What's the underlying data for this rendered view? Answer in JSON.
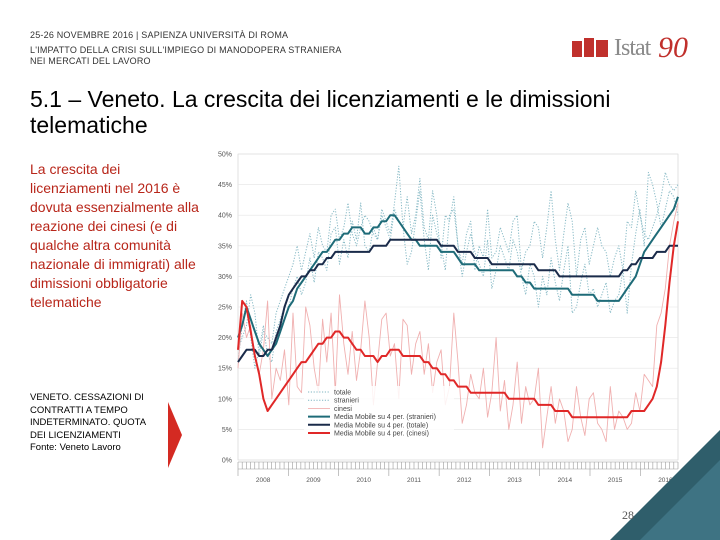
{
  "header": {
    "event": "25-26 NOVEMBRE 2016 | SAPIENZA UNIVERSITÀ DI ROMA",
    "subtitle_line1": "L'IMPATTO DELLA CRISI SULL'IMPIEGO DI MANODOPERA STRANIERA",
    "subtitle_line2": "NEI MERCATI DEL LAVORO"
  },
  "logo": {
    "text": "Istat",
    "anniversary": "90"
  },
  "slide": {
    "title": "5.1 – Veneto. La crescita dei licenziamenti e le dimissioni telematiche",
    "body": "La crescita dei licenziamenti nel 2016 è dovuta essenzialmente alla reazione dei cinesi (e di qualche altra comunità nazionale di immigrati) alle dimissioni obbligatorie telematiche",
    "caption_line1": "VENETO. CESSAZIONI DI",
    "caption_line2": "CONTRATTI A TEMPO",
    "caption_line3": "INDETERMINATO. QUOTA",
    "caption_line4": "DEI LICENZIAMENTI",
    "caption_source": "Fonte: Veneto Lavoro",
    "page_number": "28"
  },
  "colors": {
    "teal_light": "#7fb5c2",
    "teal_dark": "#1e6b78",
    "navy": "#1a2b4a",
    "red": "#e02828",
    "pink": "#f0b0b0",
    "body_red": "#b8261a",
    "arrow_red": "#d42a22"
  },
  "chart_data": {
    "type": "line",
    "x_start": 2008,
    "x_end": 2016.75,
    "ylim": [
      0,
      50
    ],
    "y_ticks": [
      "0%",
      "5%",
      "10%",
      "15%",
      "20%",
      "25%",
      "30%",
      "35%",
      "40%",
      "45%",
      "50%"
    ],
    "x_ticks": [
      "2008",
      "2009",
      "2010",
      "2011",
      "2012",
      "2013",
      "2014",
      "2015",
      "2016"
    ],
    "series": [
      {
        "name": "totale",
        "style": "dotted",
        "color": "#7fb5c2",
        "values": [
          18,
          20,
          22,
          27,
          24,
          17,
          21,
          20,
          19,
          24,
          26,
          28,
          30,
          32,
          35,
          31,
          34,
          37,
          33,
          38,
          35,
          34,
          40,
          41,
          36,
          38,
          42,
          37,
          35,
          38,
          40,
          39,
          37,
          36,
          40,
          38,
          36,
          41,
          39,
          38,
          43,
          37,
          40,
          46,
          38,
          36,
          44,
          40,
          33,
          40,
          39,
          43,
          35,
          32,
          37,
          39,
          31,
          35,
          33,
          41,
          33,
          34,
          38,
          36,
          34,
          39,
          40,
          31,
          34,
          35,
          39,
          38,
          33,
          38,
          44,
          36,
          31,
          37,
          42,
          39,
          30,
          36,
          38,
          32,
          35,
          38,
          35,
          34,
          30,
          33,
          35,
          31,
          39,
          38,
          44,
          40,
          37,
          36,
          38,
          40,
          43,
          47,
          45,
          44,
          45
        ]
      },
      {
        "name": "stranieri",
        "style": "dotted",
        "color": "#7fb5c2",
        "values": [
          16,
          22,
          26,
          20,
          15,
          18,
          22,
          17,
          16,
          21,
          23,
          25,
          25,
          28,
          30,
          27,
          29,
          33,
          29,
          34,
          33,
          31,
          37,
          38,
          32,
          36,
          33,
          39,
          36,
          42,
          35,
          34,
          38,
          36,
          41,
          39,
          37,
          42,
          48,
          38,
          32,
          34,
          39,
          44,
          36,
          31,
          40,
          37,
          35,
          31,
          40,
          41,
          35,
          30,
          34,
          37,
          34,
          32,
          30,
          36,
          28,
          31,
          35,
          33,
          31,
          36,
          34,
          30,
          27,
          32,
          30,
          25,
          30,
          27,
          33,
          29,
          26,
          31,
          35,
          24,
          25,
          29,
          32,
          27,
          28,
          25,
          27,
          29,
          24,
          26,
          27,
          31,
          24,
          32,
          37,
          41,
          35,
          47,
          45,
          42,
          38,
          41,
          44,
          43,
          40
        ]
      },
      {
        "name": "cinesi",
        "style": "thin",
        "color": "#f0b0b0",
        "values": [
          15,
          24,
          20,
          22,
          17,
          14,
          18,
          26,
          10,
          15,
          13,
          18,
          9,
          24,
          12,
          11,
          25,
          22,
          15,
          11,
          23,
          16,
          24,
          11,
          27,
          19,
          14,
          21,
          13,
          18,
          26,
          20,
          9,
          16,
          23,
          24,
          17,
          19,
          10,
          23,
          22,
          14,
          19,
          21,
          14,
          19,
          11,
          16,
          18,
          9,
          12,
          24,
          16,
          6,
          9,
          14,
          11,
          10,
          15,
          7,
          11,
          20,
          8,
          13,
          5,
          9,
          16,
          6,
          12,
          9,
          10,
          15,
          2,
          7,
          12,
          6,
          10,
          8,
          3,
          5,
          12,
          7,
          4,
          10,
          11,
          6,
          5,
          3,
          12,
          5,
          8,
          7,
          5,
          6,
          11,
          8,
          14,
          13,
          12,
          22,
          24,
          28,
          35,
          39,
          42
        ]
      },
      {
        "name": "Media Mobile su 4 per. (stranieri)",
        "style": "solid",
        "color": "#1e6b78",
        "values": [
          20,
          22,
          25,
          23,
          21,
          19,
          18,
          17,
          18,
          19,
          21,
          23,
          25,
          26,
          28,
          29,
          30,
          31,
          32,
          33,
          34,
          34,
          35,
          36,
          36,
          37,
          37,
          38,
          38,
          38,
          37,
          37,
          38,
          38,
          39,
          39,
          40,
          40,
          39,
          38,
          37,
          36,
          36,
          35,
          35,
          35,
          35,
          35,
          34,
          34,
          34,
          34,
          33,
          32,
          32,
          32,
          32,
          31,
          31,
          31,
          31,
          31,
          31,
          31,
          31,
          31,
          30,
          30,
          29,
          29,
          28,
          28,
          28,
          28,
          28,
          28,
          28,
          28,
          28,
          27,
          27,
          27,
          27,
          27,
          27,
          26,
          26,
          26,
          26,
          26,
          26,
          27,
          28,
          29,
          30,
          32,
          34,
          35,
          36,
          37,
          38,
          39,
          40,
          41,
          43
        ]
      },
      {
        "name": "Media Mobile su 4 per. (totale)",
        "style": "solid",
        "color": "#1a2b4a",
        "values": [
          16,
          17,
          18,
          18,
          18,
          17,
          17,
          18,
          18,
          20,
          22,
          25,
          27,
          28,
          29,
          30,
          30,
          31,
          31,
          32,
          32,
          33,
          33,
          34,
          34,
          34,
          34,
          34,
          34,
          34,
          34,
          34,
          35,
          35,
          35,
          35,
          36,
          36,
          36,
          36,
          36,
          36,
          36,
          36,
          36,
          36,
          36,
          36,
          35,
          35,
          35,
          35,
          34,
          34,
          34,
          34,
          33,
          33,
          33,
          33,
          32,
          32,
          32,
          32,
          32,
          32,
          32,
          32,
          32,
          32,
          32,
          31,
          31,
          31,
          31,
          31,
          30,
          30,
          30,
          30,
          30,
          30,
          30,
          30,
          30,
          30,
          30,
          30,
          30,
          30,
          30,
          31,
          31,
          32,
          32,
          33,
          33,
          33,
          33,
          34,
          34,
          34,
          35,
          35,
          35
        ]
      },
      {
        "name": "Media Mobile su 4 per. (cinesi)",
        "style": "solid",
        "color": "#e02828",
        "values": [
          18,
          26,
          25,
          21,
          17,
          14,
          10,
          8,
          9,
          10,
          11,
          12,
          13,
          14,
          15,
          16,
          16,
          17,
          18,
          19,
          19,
          20,
          20,
          21,
          21,
          20,
          20,
          19,
          18,
          18,
          17,
          17,
          17,
          16,
          17,
          17,
          18,
          18,
          18,
          17,
          17,
          17,
          17,
          17,
          16,
          16,
          15,
          15,
          14,
          14,
          13,
          13,
          12,
          12,
          12,
          11,
          11,
          11,
          11,
          11,
          11,
          11,
          11,
          11,
          10,
          10,
          10,
          10,
          10,
          10,
          10,
          9,
          9,
          9,
          9,
          8,
          8,
          8,
          8,
          7,
          7,
          7,
          7,
          7,
          7,
          7,
          7,
          7,
          7,
          7,
          7,
          7,
          7,
          8,
          8,
          8,
          8,
          9,
          10,
          12,
          16,
          22,
          29,
          35,
          39
        ]
      }
    ]
  }
}
